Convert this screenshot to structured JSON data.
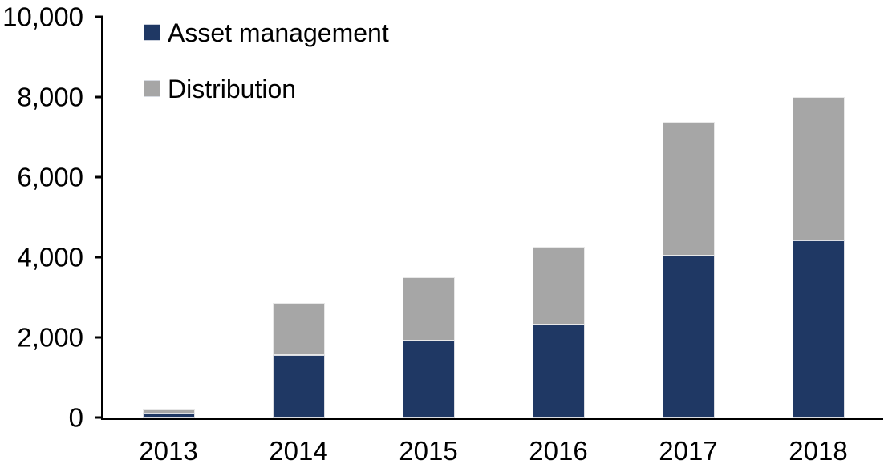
{
  "chart_data": {
    "type": "bar",
    "stacked": true,
    "title": "",
    "xlabel": "",
    "ylabel": "",
    "categories": [
      "2013",
      "2014",
      "2015",
      "2016",
      "2017",
      "2018"
    ],
    "series": [
      {
        "name": "Asset management",
        "color": "#1F3864",
        "values": [
          100,
          1570,
          1915,
          2320,
          4045,
          4420
        ]
      },
      {
        "name": "Distribution",
        "color": "#A6A6A6",
        "values": [
          110,
          1295,
          1585,
          1935,
          3340,
          3580
        ]
      }
    ],
    "totals": [
      210,
      2865,
      3500,
      4255,
      7385,
      8000
    ],
    "ylim": [
      0,
      10000
    ],
    "yticks": [
      {
        "value": 0,
        "label": "0"
      },
      {
        "value": 2000,
        "label": "2,000"
      },
      {
        "value": 4000,
        "label": "4,000"
      },
      {
        "value": 6000,
        "label": "6,000"
      },
      {
        "value": 8000,
        "label": "8,000"
      },
      {
        "value": 10000,
        "label": "10,000"
      }
    ],
    "grid": false,
    "legend_position": "top-left",
    "axis_color": "#000000",
    "background_color": "#FFFFFF"
  }
}
